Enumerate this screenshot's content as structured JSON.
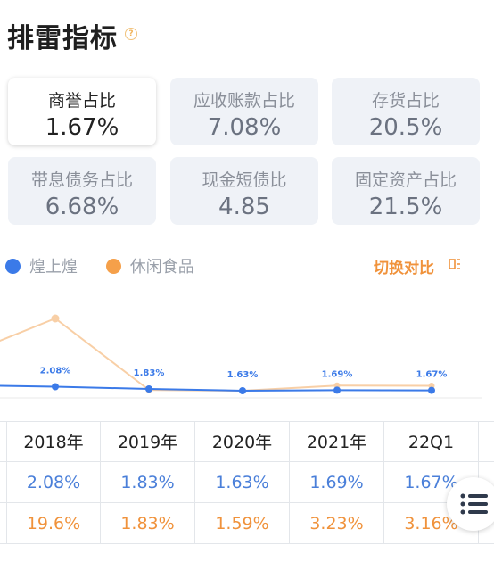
{
  "header": {
    "title": "排雷指标",
    "help_icon": "question-circle-icon"
  },
  "cards": [
    {
      "label": "商誉占比",
      "value": "1.67%",
      "active": true
    },
    {
      "label": "应收账款占比",
      "value": "7.08%",
      "active": false
    },
    {
      "label": "存货占比",
      "value": "20.5%",
      "active": false
    },
    {
      "label": "带息债务占比",
      "value": "6.68%",
      "active": false
    },
    {
      "label": "现金短债比",
      "value": "4.85",
      "active": false
    },
    {
      "label": "固定资产占比",
      "value": "21.5%",
      "active": false
    }
  ],
  "legend": {
    "series1": {
      "name": "煌上煌",
      "color": "#3b7ae8"
    },
    "series2": {
      "name": "休闲食品",
      "color": "#f5a04a"
    },
    "switch_label": "切换对比",
    "switch_icon": "switch-compare-icon"
  },
  "chart_data": {
    "type": "line",
    "x": [
      "2018年",
      "2019年",
      "2020年",
      "2021年",
      "22Q1"
    ],
    "series": [
      {
        "name": "煌上煌",
        "values": [
          2.08,
          1.83,
          1.63,
          1.69,
          1.67
        ],
        "labels": [
          "2.08%",
          "1.83%",
          "1.63%",
          "1.69%",
          "1.67%"
        ]
      },
      {
        "name": "休闲食品",
        "values": [
          19.6,
          1.83,
          1.59,
          3.23,
          3.16
        ]
      }
    ],
    "colors": [
      "#3b7ae8",
      "#f6c89c"
    ]
  },
  "table": {
    "headers": [
      "2018年",
      "2019年",
      "2020年",
      "2021年",
      "22Q1"
    ],
    "row1": [
      "2.08%",
      "1.83%",
      "1.63%",
      "1.69%",
      "1.67%"
    ],
    "row2": [
      "19.6%",
      "1.83%",
      "1.59%",
      "3.23%",
      "3.16%"
    ]
  },
  "float_menu": {
    "icon": "list-menu-icon"
  }
}
